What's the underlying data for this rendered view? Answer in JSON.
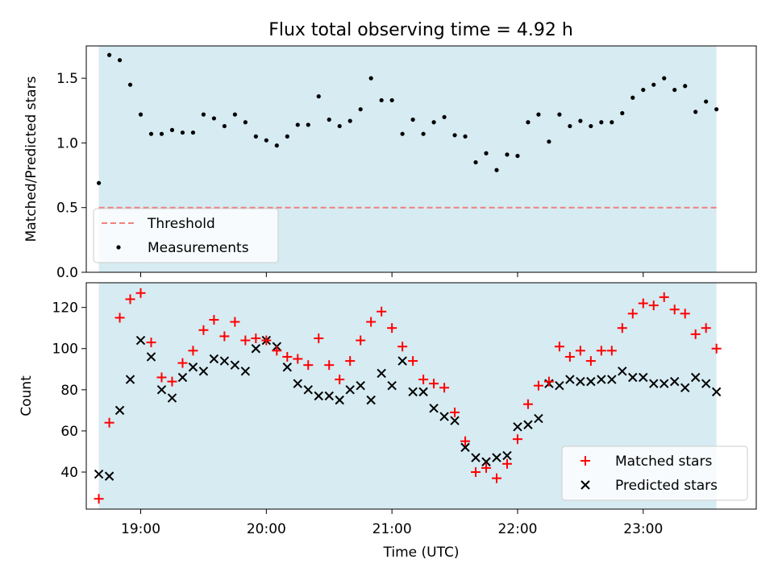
{
  "title": "Flux total observing time = 4.92 h",
  "colors": {
    "background_band": "#add8e6",
    "threshold": "#f08080",
    "measurements": "#000000",
    "matched": "#ff0000",
    "predicted": "#000000"
  },
  "chart_data": [
    {
      "type": "scatter",
      "ylabel": "Matched/Predicted stars",
      "ylim": [
        0,
        1.75
      ],
      "yticks": [
        0.0,
        0.5,
        1.0,
        1.5
      ],
      "ytick_labels": [
        "0.0",
        "0.5",
        "1.0",
        "1.5"
      ],
      "xlim": [
        "18:34",
        "23:54"
      ],
      "observing_band": [
        "18:40",
        "23:35"
      ],
      "legend": {
        "placement": "lower-left",
        "entries": [
          "Threshold",
          "Measurements"
        ]
      },
      "threshold": {
        "name": "Threshold",
        "value": 0.5,
        "x": [
          "18:40",
          "23:35"
        ]
      },
      "series": [
        {
          "name": "Measurements",
          "x": [
            "18:40",
            "18:45",
            "18:50",
            "18:55",
            "19:00",
            "19:05",
            "19:10",
            "19:15",
            "19:20",
            "19:25",
            "19:30",
            "19:35",
            "19:40",
            "19:45",
            "19:50",
            "19:55",
            "20:00",
            "20:05",
            "20:10",
            "20:15",
            "20:20",
            "20:25",
            "20:30",
            "20:35",
            "20:40",
            "20:45",
            "20:50",
            "20:55",
            "21:00",
            "21:05",
            "21:10",
            "21:15",
            "21:20",
            "21:25",
            "21:30",
            "21:35",
            "21:40",
            "21:45",
            "21:50",
            "21:55",
            "22:00",
            "22:05",
            "22:10",
            "22:15",
            "22:20",
            "22:25",
            "22:30",
            "22:35",
            "22:40",
            "22:45",
            "22:50",
            "22:55",
            "23:00",
            "23:05",
            "23:10",
            "23:15",
            "23:20",
            "23:25",
            "23:30",
            "23:35"
          ],
          "y": [
            0.69,
            1.68,
            1.64,
            1.45,
            1.22,
            1.07,
            1.07,
            1.1,
            1.08,
            1.08,
            1.22,
            1.19,
            1.13,
            1.22,
            1.16,
            1.05,
            1.02,
            0.98,
            1.05,
            1.14,
            1.14,
            1.36,
            1.18,
            1.13,
            1.17,
            1.26,
            1.5,
            1.33,
            1.33,
            1.07,
            1.18,
            1.07,
            1.16,
            1.2,
            1.06,
            1.05,
            0.85,
            0.92,
            0.79,
            0.91,
            0.9,
            1.16,
            1.22,
            1.01,
            1.22,
            1.13,
            1.17,
            1.13,
            1.16,
            1.16,
            1.23,
            1.35,
            1.41,
            1.45,
            1.5,
            1.41,
            1.44,
            1.24,
            1.32,
            1.26
          ]
        }
      ]
    },
    {
      "type": "scatter",
      "xlabel": "Time (UTC)",
      "ylabel": "Count",
      "ylim": [
        22,
        132
      ],
      "yticks": [
        40,
        60,
        80,
        100,
        120
      ],
      "ytick_labels": [
        "40",
        "60",
        "80",
        "100",
        "120"
      ],
      "xlim": [
        "18:34",
        "23:54"
      ],
      "xticks": [
        "19:00",
        "20:00",
        "21:00",
        "22:00",
        "23:00"
      ],
      "xtick_labels": [
        "19:00",
        "20:00",
        "21:00",
        "22:00",
        "23:00"
      ],
      "observing_band": [
        "18:40",
        "23:35"
      ],
      "legend": {
        "placement": "lower-right",
        "entries": [
          "Matched stars",
          "Predicted stars"
        ]
      },
      "x": [
        "18:40",
        "18:45",
        "18:50",
        "18:55",
        "19:00",
        "19:05",
        "19:10",
        "19:15",
        "19:20",
        "19:25",
        "19:30",
        "19:35",
        "19:40",
        "19:45",
        "19:50",
        "19:55",
        "20:00",
        "20:05",
        "20:10",
        "20:15",
        "20:20",
        "20:25",
        "20:30",
        "20:35",
        "20:40",
        "20:45",
        "20:50",
        "20:55",
        "21:00",
        "21:05",
        "21:10",
        "21:15",
        "21:20",
        "21:25",
        "21:30",
        "21:35",
        "21:40",
        "21:45",
        "21:50",
        "21:55",
        "22:00",
        "22:05",
        "22:10",
        "22:15",
        "22:20",
        "22:25",
        "22:30",
        "22:35",
        "22:40",
        "22:45",
        "22:50",
        "22:55",
        "23:00",
        "23:05",
        "23:10",
        "23:15",
        "23:20",
        "23:25",
        "23:30",
        "23:35"
      ],
      "series": [
        {
          "name": "Matched stars",
          "marker": "plus",
          "values": [
            27,
            64,
            115,
            124,
            127,
            103,
            86,
            84,
            93,
            99,
            109,
            114,
            106,
            113,
            104,
            105,
            104,
            99,
            96,
            95,
            92,
            105,
            92,
            85,
            94,
            104,
            113,
            118,
            110,
            101,
            94,
            85,
            83,
            81,
            69,
            55,
            40,
            42,
            37,
            44,
            56,
            73,
            82,
            84,
            101,
            96,
            99,
            94,
            99,
            99,
            110,
            117,
            122,
            121,
            125,
            119,
            117,
            107,
            110,
            100
          ]
        },
        {
          "name": "Predicted stars",
          "marker": "x",
          "values": [
            39,
            38,
            70,
            85,
            104,
            96,
            80,
            76,
            86,
            91,
            89,
            95,
            94,
            92,
            89,
            100,
            104,
            101,
            91,
            83,
            80,
            77,
            77,
            75,
            80,
            82,
            75,
            88,
            82,
            94,
            79,
            79,
            71,
            67,
            65,
            52,
            47,
            45,
            47,
            48,
            62,
            63,
            66,
            83,
            82,
            85,
            84,
            84,
            85,
            85,
            89,
            86,
            86,
            83,
            83,
            84,
            81,
            86,
            83,
            79
          ]
        }
      ]
    }
  ]
}
